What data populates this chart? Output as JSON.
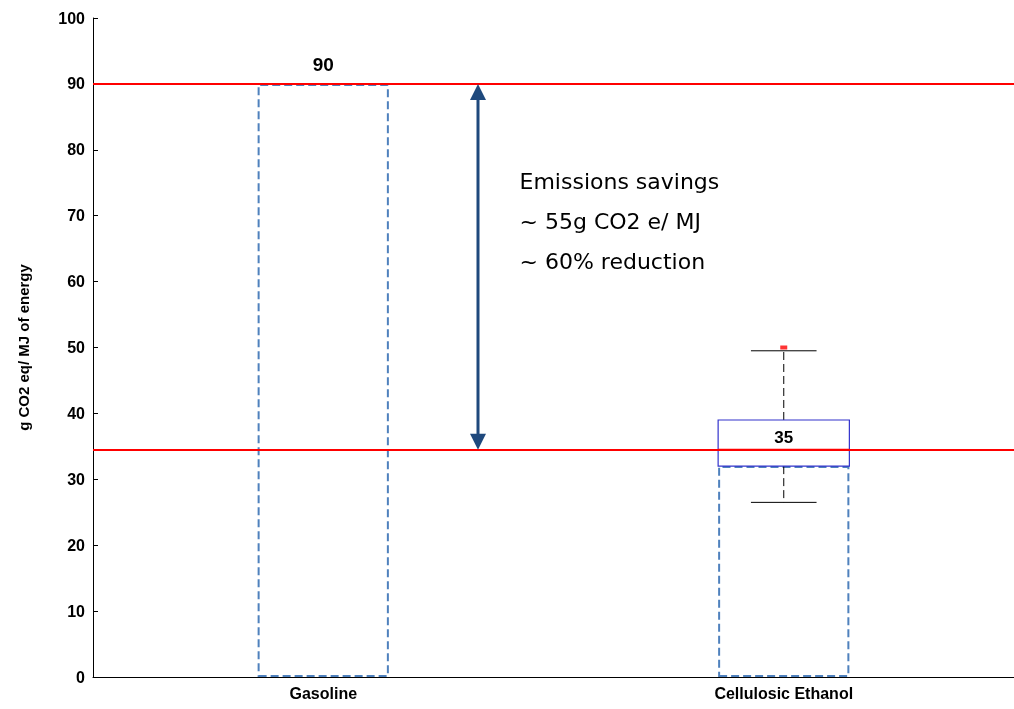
{
  "chart_data": {
    "type": "box",
    "ylabel": "g CO2 eq/ MJ of energy",
    "categories": [
      "Gasoline",
      "Cellulosic Ethanol"
    ],
    "series": [
      {
        "type": "bar",
        "values": [
          90,
          32
        ],
        "color": "#4f81bd",
        "line_style": "dashed",
        "value_labels": [
          "90",
          null
        ]
      },
      {
        "color": "#3333cc",
        "boxes": [
          null,
          {
            "low": 26.5,
            "q1": 32,
            "median": 34.5,
            "q3": 39,
            "high": 49.5,
            "outliers": [
              50
            ]
          }
        ]
      }
    ],
    "ylim": [
      0,
      100
    ],
    "yticks": [
      0,
      10,
      20,
      30,
      40,
      50,
      60,
      70,
      80,
      90,
      100
    ],
    "ref_lines": [
      {
        "axis": "y",
        "value": 90,
        "color": "#ff0000"
      },
      {
        "axis": "y",
        "value": 34.5,
        "color": "#ff0000"
      }
    ],
    "annotations": [
      "Emissions savings",
      "~ 55g CO2 e/ MJ",
      "~ 60% reduction",
      {
        "text": "35",
        "x": "Cellulosic Ethanol",
        "y": 34.5
      }
    ],
    "grid": false
  }
}
